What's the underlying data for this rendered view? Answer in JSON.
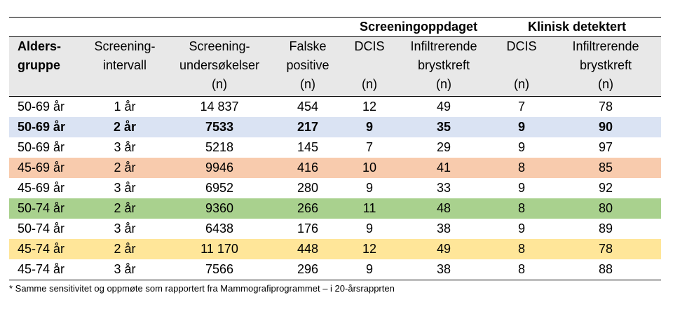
{
  "table": {
    "group_headers": {
      "screening": "Screeningoppdaget",
      "clinical": "Klinisk detektert"
    },
    "columns": [
      {
        "key": "age",
        "lines": [
          "Alders-",
          "gruppe",
          ""
        ]
      },
      {
        "key": "interval",
        "lines": [
          "Screening-",
          "intervall",
          ""
        ]
      },
      {
        "key": "exams",
        "lines": [
          "Screening-",
          "undersøkelser",
          "(n)"
        ]
      },
      {
        "key": "false_pos",
        "lines": [
          "Falske",
          "positive",
          "(n)"
        ]
      },
      {
        "key": "dcis_s",
        "lines": [
          "DCIS",
          "",
          "(n)"
        ]
      },
      {
        "key": "inf_s",
        "lines": [
          "Infiltrerende",
          "brystkreft",
          "(n)"
        ]
      },
      {
        "key": "dcis_c",
        "lines": [
          "DCIS",
          "",
          "(n)"
        ]
      },
      {
        "key": "inf_c",
        "lines": [
          "Infiltrerende",
          "brystkreft",
          "(n)"
        ]
      }
    ],
    "rows": [
      {
        "cells": [
          "50-69 år",
          "1 år",
          "14 837",
          "454",
          "12",
          "49",
          "7",
          "78"
        ],
        "color": "#ffffff",
        "bold": false
      },
      {
        "cells": [
          "50-69 år",
          "2 år",
          "7533",
          "217",
          "9",
          "35",
          "9",
          "90"
        ],
        "color": "#dae3f3",
        "bold": true
      },
      {
        "cells": [
          "50-69 år",
          "3 år",
          "5218",
          "145",
          "7",
          "29",
          "9",
          "97"
        ],
        "color": "#ffffff",
        "bold": false
      },
      {
        "cells": [
          "45-69 år",
          "2 år",
          "9946",
          "416",
          "10",
          "41",
          "8",
          "85"
        ],
        "color": "#f8cbad",
        "bold": false
      },
      {
        "cells": [
          "45-69 år",
          "3 år",
          "6952",
          "280",
          "9",
          "33",
          "9",
          "92"
        ],
        "color": "#ffffff",
        "bold": false
      },
      {
        "cells": [
          "50-74 år",
          "2 år",
          "9360",
          "266",
          "11",
          "48",
          "8",
          "80"
        ],
        "color": "#a9d18e",
        "bold": false
      },
      {
        "cells": [
          "50-74 år",
          "3 år",
          "6438",
          "176",
          "9",
          "38",
          "9",
          "89"
        ],
        "color": "#ffffff",
        "bold": false
      },
      {
        "cells": [
          "45-74 år",
          "2 år",
          "11 170",
          "448",
          "12",
          "49",
          "8",
          "78"
        ],
        "color": "#ffe699",
        "bold": false
      },
      {
        "cells": [
          "45-74 år",
          "3 år",
          "7566",
          "296",
          "9",
          "38",
          "8",
          "88"
        ],
        "color": "#ffffff",
        "bold": false
      }
    ]
  },
  "footnote": "* Samme sensitivitet og oppmøte som rapportert fra Mammografiprogrammet – i 20-årsrapprten"
}
